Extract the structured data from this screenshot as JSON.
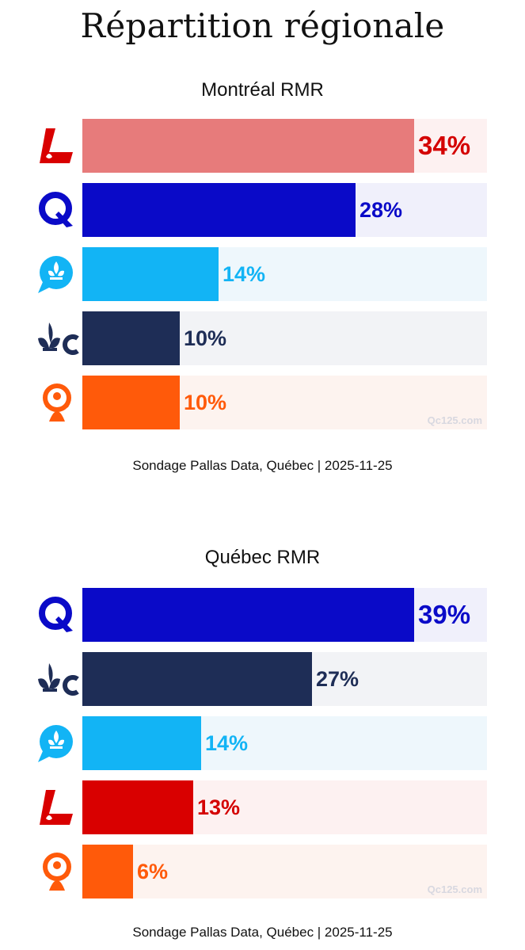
{
  "title": "Répartition régionale",
  "parties": {
    "PLQ": {
      "icon": "liberal-logo-icon",
      "color": "#e77b7b",
      "bg": "#fdf1f1"
    },
    "PQ": {
      "icon": "pq-logo-icon",
      "color": "#0a0ac8",
      "bg": "#f0f0fb"
    },
    "QS": {
      "icon": "qs-logo-icon",
      "color": "#12b4f5",
      "bg": "#eef7fc"
    },
    "PCQ": {
      "icon": "pcq-logo-icon",
      "color": "#1e2d56",
      "bg": "#f2f3f6"
    },
    "CAQ": {
      "icon": "caq-logo-icon",
      "color": "#ff5a0a",
      "bg": "#fdf3ef"
    }
  },
  "chart_data": [
    {
      "type": "bar",
      "orientation": "horizontal",
      "title": "Montréal RMR",
      "categories": [
        "PLQ",
        "PQ",
        "QS",
        "PCQ",
        "CAQ"
      ],
      "values": [
        34,
        28,
        14,
        10,
        10
      ],
      "labels": [
        "34%",
        "28%",
        "14%",
        "10%",
        "10%"
      ],
      "bar_colors": [
        "#e77b7b",
        "#0a0ac8",
        "#12b4f5",
        "#1e2d56",
        "#ff5a0a"
      ],
      "label_colors": [
        "#d40000",
        "#0a0ac8",
        "#12b4f5",
        "#1e2d56",
        "#ff5a0a"
      ],
      "xlim": [
        0,
        41.5
      ],
      "watermark": "Qc125.com",
      "source": "Sondage Pallas Data, Québec | 2025-11-25"
    },
    {
      "type": "bar",
      "orientation": "horizontal",
      "title": "Québec RMR",
      "categories": [
        "PQ",
        "PCQ",
        "QS",
        "PLQ",
        "CAQ"
      ],
      "values": [
        39,
        27,
        14,
        13,
        6
      ],
      "labels": [
        "39%",
        "27%",
        "14%",
        "13%",
        "6%"
      ],
      "bar_colors": [
        "#0a0ac8",
        "#1e2d56",
        "#12b4f5",
        "#d90000",
        "#ff5a0a"
      ],
      "label_colors": [
        "#0a0ac8",
        "#1e2d56",
        "#12b4f5",
        "#d40000",
        "#ff5a0a"
      ],
      "xlim": [
        0,
        47.6
      ],
      "watermark": "Qc125.com",
      "source": "Sondage Pallas Data, Québec | 2025-11-25"
    }
  ]
}
